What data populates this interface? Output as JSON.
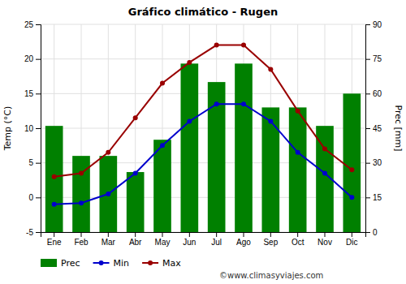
{
  "chart_data": {
    "type": "bar",
    "title": "Gráfico climático - Rugen",
    "categories": [
      "Ene",
      "Feb",
      "Mar",
      "Abr",
      "May",
      "Jun",
      "Jul",
      "Ago",
      "Sep",
      "Oct",
      "Nov",
      "Dic"
    ],
    "series": [
      {
        "name": "Prec",
        "type": "bar",
        "axis": "y2",
        "color": "#008000",
        "values": [
          46,
          33,
          33,
          26,
          40,
          73,
          65,
          73,
          54,
          54,
          46,
          60
        ]
      },
      {
        "name": "Min",
        "type": "line",
        "marker": "circle",
        "color": "#0000cc",
        "values": [
          -1.0,
          -0.8,
          0.5,
          3.5,
          7.5,
          11.0,
          13.5,
          13.5,
          11.0,
          6.5,
          3.5,
          0.0
        ]
      },
      {
        "name": "Max",
        "type": "line",
        "marker": "circle",
        "color": "#990000",
        "values": [
          3.0,
          3.5,
          6.5,
          11.5,
          16.5,
          19.5,
          22.0,
          22.0,
          18.5,
          12.5,
          7.0,
          4.0
        ]
      }
    ],
    "ylim": [
      -5,
      25
    ],
    "yticks": [
      -5,
      0,
      5,
      10,
      15,
      20,
      25
    ],
    "y2lim": [
      0,
      90
    ],
    "y2ticks": [
      0,
      15,
      30,
      45,
      60,
      75,
      90
    ],
    "ylabel": "Temp (°C)",
    "y2label": "Prec [mm]",
    "annotations": [
      "©www.climasyviajes.com"
    ],
    "grid": true,
    "legend": "bottom"
  }
}
